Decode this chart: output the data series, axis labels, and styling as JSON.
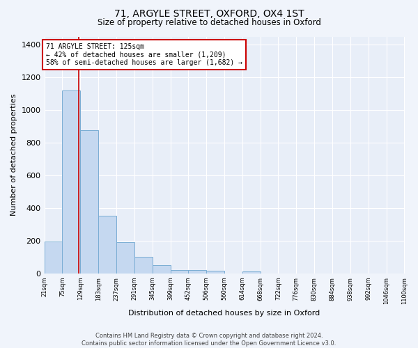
{
  "title": "71, ARGYLE STREET, OXFORD, OX4 1ST",
  "subtitle": "Size of property relative to detached houses in Oxford",
  "xlabel": "Distribution of detached houses by size in Oxford",
  "ylabel": "Number of detached properties",
  "bin_edges": [
    21,
    75,
    129,
    183,
    237,
    291,
    345,
    399,
    452,
    506,
    560,
    614,
    668,
    722,
    776,
    830,
    884,
    938,
    992,
    1046,
    1100
  ],
  "bar_heights": [
    197,
    1120,
    877,
    352,
    190,
    100,
    52,
    22,
    22,
    17,
    0,
    14,
    0,
    0,
    0,
    0,
    0,
    0,
    0,
    0
  ],
  "bar_color": "#c5d8f0",
  "bar_edge_color": "#7aadd4",
  "property_size": 125,
  "property_line_color": "#cc0000",
  "annotation_text": "71 ARGYLE STREET: 125sqm\n← 42% of detached houses are smaller (1,209)\n58% of semi-detached houses are larger (1,682) →",
  "annotation_box_color": "#cc0000",
  "ylim": [
    0,
    1450
  ],
  "yticks": [
    0,
    200,
    400,
    600,
    800,
    1000,
    1200,
    1400
  ],
  "tick_labels": [
    "21sqm",
    "75sqm",
    "129sqm",
    "183sqm",
    "237sqm",
    "291sqm",
    "345sqm",
    "399sqm",
    "452sqm",
    "506sqm",
    "560sqm",
    "614sqm",
    "668sqm",
    "722sqm",
    "776sqm",
    "830sqm",
    "884sqm",
    "938sqm",
    "992sqm",
    "1046sqm",
    "1100sqm"
  ],
  "background_color": "#e8eef8",
  "fig_background_color": "#f0f4fb",
  "grid_color": "#ffffff",
  "footer_text": "Contains HM Land Registry data © Crown copyright and database right 2024.\nContains public sector information licensed under the Open Government Licence v3.0."
}
